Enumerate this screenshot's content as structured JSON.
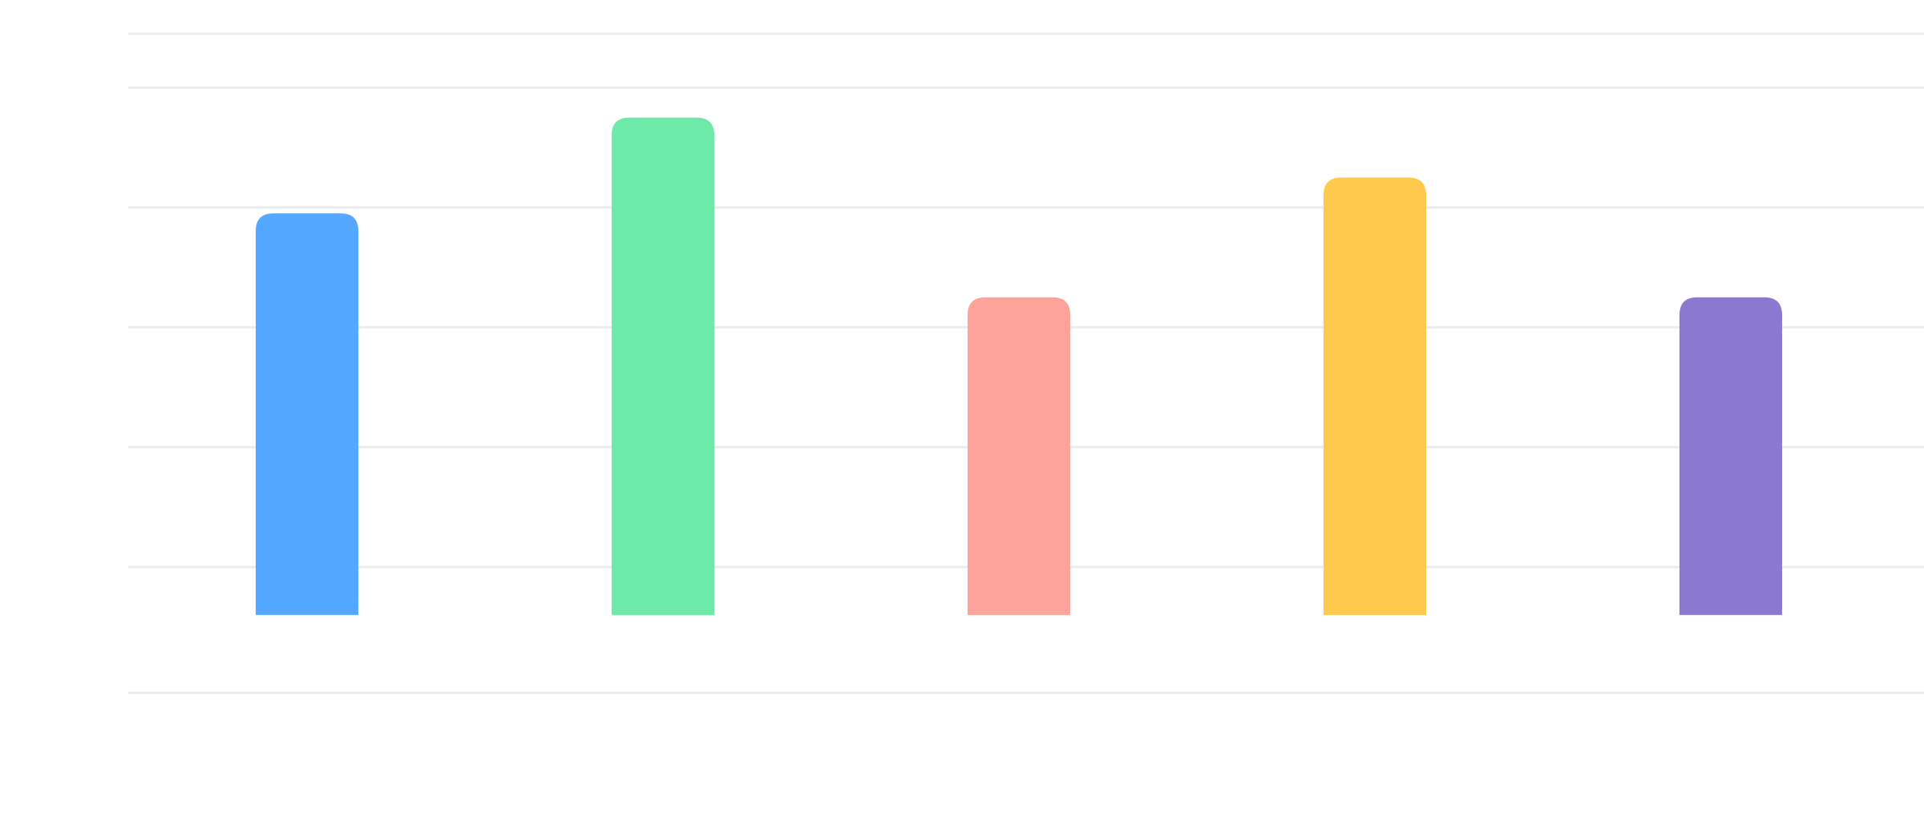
{
  "chart_data": {
    "type": "bar",
    "categories": [
      "",
      "",
      "",
      "",
      ""
    ],
    "values": [
      6.7,
      8.3,
      5.3,
      7.3,
      5.3
    ],
    "colors": [
      "#54a8ff",
      "#6deaa7",
      "#fca39c",
      "#fec94d",
      "#8b78d0"
    ],
    "ylim": [
      -1.3,
      9.7
    ],
    "gridlines": [
      -1.3,
      0.8,
      2.8,
      4.8,
      6.8,
      8.8,
      9.7
    ],
    "grid": true,
    "legend": "none",
    "title": "",
    "xlabel": "",
    "ylabel": ""
  }
}
